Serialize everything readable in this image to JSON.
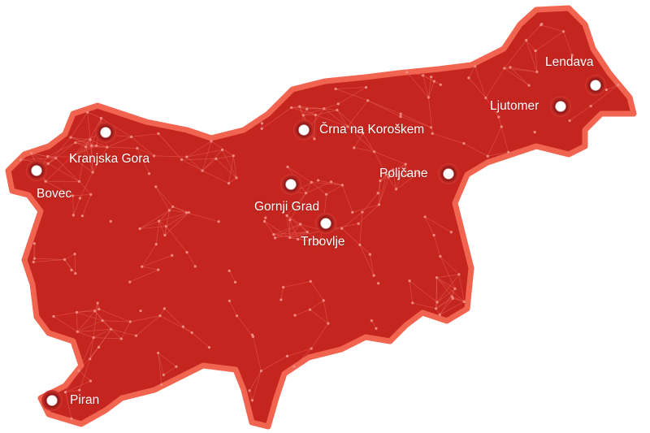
{
  "map": {
    "fill_color": "#c4261f",
    "border_color": "#f1644f",
    "marker_color": "#ffffff",
    "cities": [
      {
        "name": "Lendava"
      },
      {
        "name": "Ljutomer"
      },
      {
        "name": "Črna na Koroškem"
      },
      {
        "name": "Kranjska Gora"
      },
      {
        "name": "Poljčane"
      },
      {
        "name": "Bovec"
      },
      {
        "name": "Gornji Grad"
      },
      {
        "name": "Trbovlje"
      },
      {
        "name": "Piran"
      }
    ]
  }
}
